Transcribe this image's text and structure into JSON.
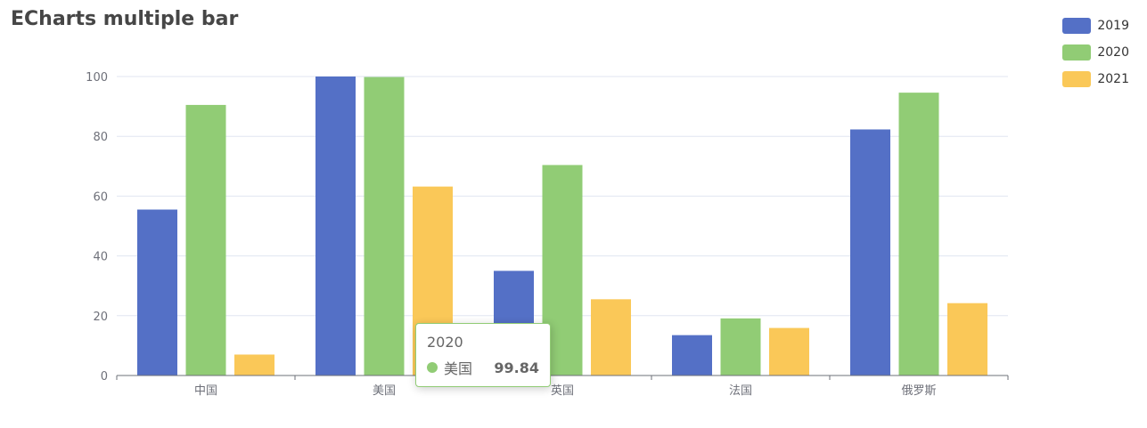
{
  "chart_data": {
    "type": "bar",
    "title": "ECharts multiple bar",
    "categories": [
      "中国",
      "美国",
      "英国",
      "法国",
      "俄罗斯"
    ],
    "series": [
      {
        "name": "2019",
        "color": "#5470c6",
        "values": [
          55.5,
          100,
          35,
          13.5,
          82.3
        ]
      },
      {
        "name": "2020",
        "color": "#91cc75",
        "values": [
          90.5,
          99.84,
          70.4,
          19.1,
          94.6
        ]
      },
      {
        "name": "2021",
        "color": "#fac858",
        "values": [
          7,
          63.2,
          25.5,
          15.9,
          24.2
        ]
      }
    ],
    "ylim": [
      0,
      100
    ],
    "yticks": [
      0,
      20,
      40,
      60,
      80,
      100
    ],
    "grid": true,
    "legend_position": "top-right",
    "tooltip": {
      "title": "2020",
      "name": "美国",
      "value": "99.84"
    }
  }
}
